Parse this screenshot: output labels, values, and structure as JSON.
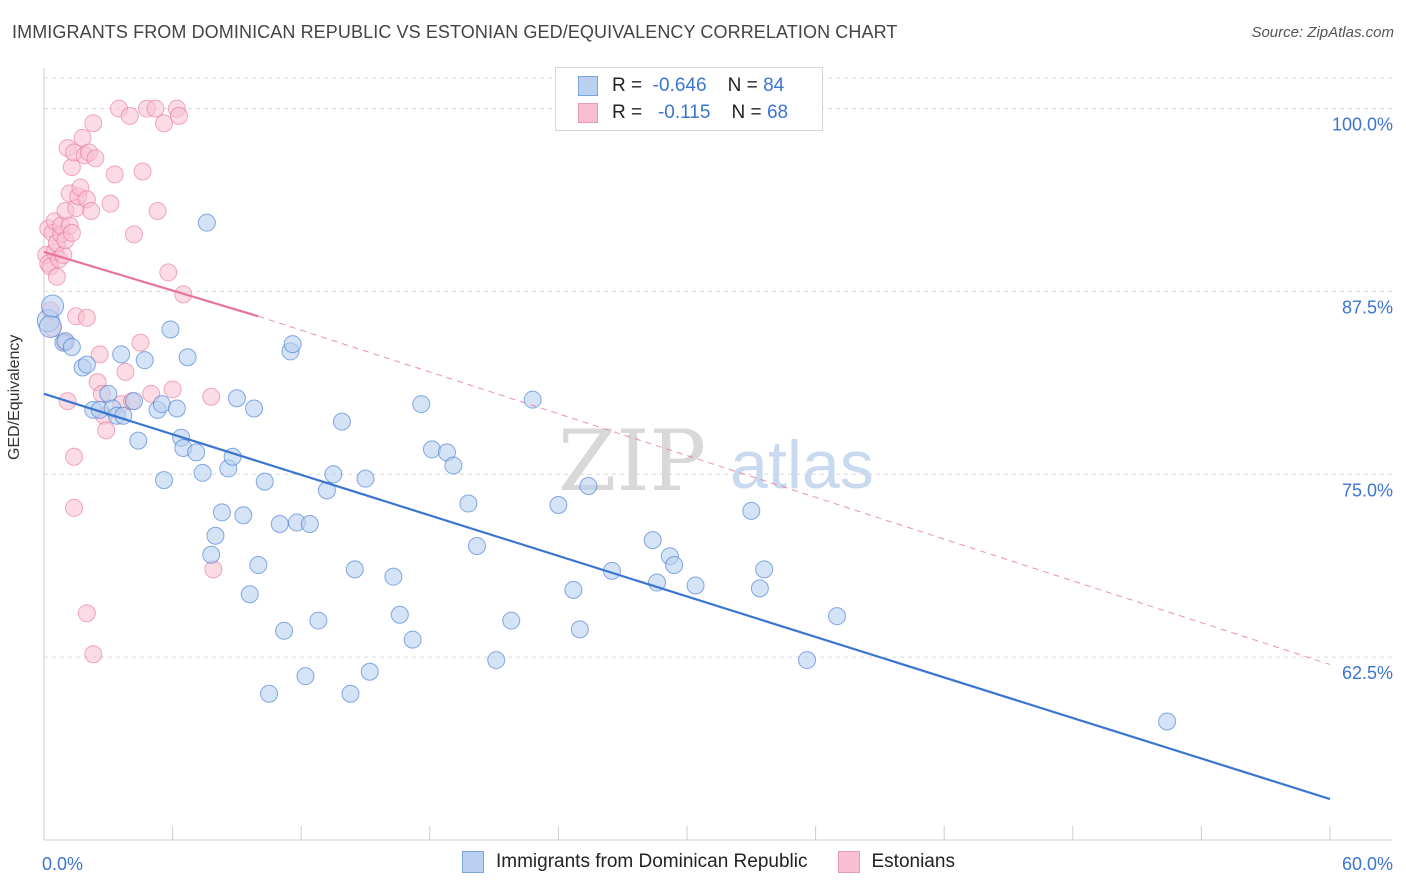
{
  "header": {
    "title": "IMMIGRANTS FROM DOMINICAN REPUBLIC VS ESTONIAN GED/EQUIVALENCY CORRELATION CHART",
    "source": "Source: ZipAtlas.com"
  },
  "watermark": {
    "zip": "ZIP",
    "atlas": "atlas"
  },
  "legend_top": {
    "rows": [
      {
        "r_label": "R =",
        "r_value": "-0.646",
        "n_label": "N =",
        "n_value": "84"
      },
      {
        "r_label": "R =",
        "r_value": "-0.115",
        "n_label": "N =",
        "n_value": "68"
      }
    ]
  },
  "colors": {
    "blue": "#3b75d1",
    "blue_fill": "#b9d0f0",
    "pink": "#e8739b",
    "pink_fill": "#f7bfd0",
    "grid": "#d9d9d9",
    "tick_text": "#3b75d1"
  },
  "chart_data": {
    "type": "scatter",
    "title": "IMMIGRANTS FROM DOMINICAN REPUBLIC VS ESTONIAN GED/EQUIVALENCY CORRELATION CHART",
    "xlabel": "",
    "ylabel": "GED/Equivalency",
    "xlim": [
      0,
      60
    ],
    "ylim": [
      50,
      102.5
    ],
    "x_tick_labels": [
      "0.0%",
      "60.0%"
    ],
    "y_ticks": [
      62.5,
      75.0,
      87.5,
      100.0
    ],
    "y_tick_labels": [
      "62.5%",
      "75.0%",
      "87.5%",
      "100.0%"
    ],
    "grid": true,
    "legend_placement": "bottom-center",
    "series": [
      {
        "name": "Immigrants from Dominican Republic",
        "color": "#3b75d1",
        "R": -0.646,
        "N": 84,
        "trend": {
          "x": [
            0,
            60
          ],
          "y": [
            80.5,
            52.8
          ],
          "style": "solid"
        },
        "points": [
          [
            0.2,
            85.5
          ],
          [
            0.3,
            85.1
          ],
          [
            0.4,
            86.5
          ],
          [
            0.9,
            84.0
          ],
          [
            1.0,
            84.1
          ],
          [
            1.3,
            83.7
          ],
          [
            1.8,
            82.3
          ],
          [
            2.0,
            82.5
          ],
          [
            2.3,
            79.4
          ],
          [
            2.6,
            79.4
          ],
          [
            3.0,
            80.5
          ],
          [
            3.2,
            79.5
          ],
          [
            3.4,
            79.0
          ],
          [
            3.7,
            79.0
          ],
          [
            3.6,
            83.2
          ],
          [
            4.2,
            80.0
          ],
          [
            4.4,
            77.3
          ],
          [
            4.7,
            82.8
          ],
          [
            5.3,
            79.4
          ],
          [
            5.5,
            79.8
          ],
          [
            5.6,
            74.6
          ],
          [
            5.9,
            84.9
          ],
          [
            6.2,
            79.5
          ],
          [
            6.4,
            77.5
          ],
          [
            6.5,
            76.8
          ],
          [
            6.7,
            83.0
          ],
          [
            7.1,
            76.5
          ],
          [
            7.4,
            75.1
          ],
          [
            7.6,
            92.2
          ],
          [
            7.8,
            69.5
          ],
          [
            8.0,
            70.8
          ],
          [
            8.3,
            72.4
          ],
          [
            8.6,
            75.4
          ],
          [
            8.8,
            76.2
          ],
          [
            9.0,
            80.2
          ],
          [
            9.3,
            72.2
          ],
          [
            9.6,
            66.8
          ],
          [
            9.8,
            79.5
          ],
          [
            10.0,
            68.8
          ],
          [
            10.3,
            74.5
          ],
          [
            10.5,
            60.0
          ],
          [
            11.0,
            71.6
          ],
          [
            11.2,
            64.3
          ],
          [
            11.5,
            83.4
          ],
          [
            11.6,
            83.9
          ],
          [
            11.8,
            71.7
          ],
          [
            12.2,
            61.2
          ],
          [
            12.4,
            71.6
          ],
          [
            12.8,
            65.0
          ],
          [
            13.2,
            73.9
          ],
          [
            13.5,
            75.0
          ],
          [
            13.9,
            78.6
          ],
          [
            14.3,
            60.0
          ],
          [
            14.5,
            68.5
          ],
          [
            15.0,
            74.7
          ],
          [
            15.2,
            61.5
          ],
          [
            16.3,
            68.0
          ],
          [
            16.6,
            65.4
          ],
          [
            17.2,
            63.7
          ],
          [
            17.6,
            79.8
          ],
          [
            18.1,
            76.7
          ],
          [
            18.8,
            76.5
          ],
          [
            19.1,
            75.6
          ],
          [
            19.8,
            73.0
          ],
          [
            20.2,
            70.1
          ],
          [
            21.1,
            62.3
          ],
          [
            21.8,
            65.0
          ],
          [
            22.8,
            80.1
          ],
          [
            24.0,
            72.9
          ],
          [
            24.7,
            67.1
          ],
          [
            25.0,
            64.4
          ],
          [
            25.4,
            74.2
          ],
          [
            26.5,
            68.4
          ],
          [
            28.4,
            70.5
          ],
          [
            28.6,
            67.6
          ],
          [
            29.2,
            69.4
          ],
          [
            29.4,
            68.8
          ],
          [
            30.4,
            67.4
          ],
          [
            33.0,
            72.5
          ],
          [
            33.4,
            67.2
          ],
          [
            33.6,
            68.5
          ],
          [
            35.6,
            62.3
          ],
          [
            37.0,
            65.3
          ],
          [
            52.4,
            58.1
          ]
        ]
      },
      {
        "name": "Estonians",
        "color": "#e8739b",
        "R": -0.115,
        "N": 68,
        "trend": {
          "x": [
            0,
            10
          ],
          "y": [
            90.2,
            85.8
          ],
          "style": "solid"
        },
        "trend_extension": {
          "x": [
            10,
            60
          ],
          "y": [
            85.8,
            62.0
          ],
          "style": "dashed"
        },
        "points": [
          [
            0.1,
            90.0
          ],
          [
            0.2,
            89.4
          ],
          [
            0.2,
            91.8
          ],
          [
            0.3,
            86.2
          ],
          [
            0.3,
            89.2
          ],
          [
            0.4,
            91.5
          ],
          [
            0.4,
            85.0
          ],
          [
            0.5,
            92.3
          ],
          [
            0.5,
            90.2
          ],
          [
            0.6,
            88.5
          ],
          [
            0.6,
            90.8
          ],
          [
            0.7,
            89.7
          ],
          [
            0.8,
            91.4
          ],
          [
            0.8,
            92.0
          ],
          [
            0.9,
            90.0
          ],
          [
            1.0,
            91.0
          ],
          [
            1.0,
            93.0
          ],
          [
            1.0,
            84.0
          ],
          [
            1.1,
            97.3
          ],
          [
            1.1,
            80.0
          ],
          [
            1.2,
            94.2
          ],
          [
            1.2,
            92.0
          ],
          [
            1.3,
            96.0
          ],
          [
            1.3,
            91.5
          ],
          [
            1.4,
            97.0
          ],
          [
            1.4,
            76.2
          ],
          [
            1.4,
            72.7
          ],
          [
            1.5,
            93.2
          ],
          [
            1.5,
            85.8
          ],
          [
            1.6,
            94.0
          ],
          [
            1.7,
            94.6
          ],
          [
            1.8,
            98.0
          ],
          [
            1.9,
            96.8
          ],
          [
            2.0,
            93.8
          ],
          [
            2.0,
            85.7
          ],
          [
            2.1,
            97.0
          ],
          [
            2.2,
            93.0
          ],
          [
            2.3,
            99.0
          ],
          [
            2.4,
            96.6
          ],
          [
            2.5,
            81.3
          ],
          [
            2.6,
            83.2
          ],
          [
            2.7,
            80.5
          ],
          [
            2.8,
            79.0
          ],
          [
            2.9,
            78.0
          ],
          [
            3.1,
            93.5
          ],
          [
            3.3,
            95.5
          ],
          [
            3.5,
            100.0
          ],
          [
            3.6,
            79.8
          ],
          [
            3.8,
            82.0
          ],
          [
            4.0,
            99.5
          ],
          [
            4.1,
            80.0
          ],
          [
            4.2,
            91.4
          ],
          [
            4.5,
            84.0
          ],
          [
            4.6,
            95.7
          ],
          [
            4.8,
            100.0
          ],
          [
            5.0,
            80.5
          ],
          [
            5.2,
            100.0
          ],
          [
            5.3,
            93.0
          ],
          [
            5.6,
            99.0
          ],
          [
            5.8,
            88.8
          ],
          [
            6.0,
            80.8
          ],
          [
            6.2,
            100.0
          ],
          [
            6.3,
            99.5
          ],
          [
            6.5,
            87.3
          ],
          [
            7.8,
            80.3
          ],
          [
            7.9,
            68.5
          ],
          [
            2.0,
            65.5
          ],
          [
            2.3,
            62.7
          ]
        ]
      }
    ]
  },
  "legend_bottom": {
    "items": [
      {
        "label": "Immigrants from Dominican Republic"
      },
      {
        "label": "Estonians"
      }
    ]
  }
}
